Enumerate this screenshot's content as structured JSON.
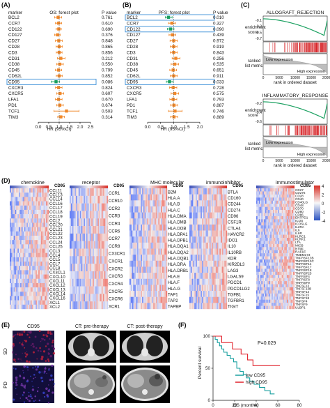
{
  "panels": {
    "A": {
      "letter": "(A)",
      "hdr_marker": "marker",
      "hdr_title": "OS: forest plot",
      "hdr_p": "P value",
      "xlabel": "HR (95%CI)",
      "ticks": [
        "0.0",
        "0.5",
        "1.0",
        "1.5",
        "2.0",
        "2.5"
      ],
      "tick_values": [
        0,
        0.5,
        1,
        1.5,
        2,
        2.5
      ],
      "xlim": [
        0,
        2.5
      ],
      "rows": [
        {
          "marker": "BCL2",
          "p": "0.761",
          "hr": 0.95,
          "lo": 0.78,
          "hi": 1.12
        },
        {
          "marker": "CCR7",
          "p": "0.610",
          "hr": 0.97,
          "lo": 0.82,
          "hi": 1.12
        },
        {
          "marker": "CD122",
          "p": "0.690",
          "hr": 0.98,
          "lo": 0.85,
          "hi": 1.1
        },
        {
          "marker": "CD127",
          "p": "0.376",
          "hr": 0.92,
          "lo": 0.78,
          "hi": 1.05
        },
        {
          "marker": "CD27",
          "p": "0.848",
          "hr": 0.98,
          "lo": 0.82,
          "hi": 1.15
        },
        {
          "marker": "CD28",
          "p": "0.865",
          "hr": 1.0,
          "lo": 0.85,
          "hi": 1.15
        },
        {
          "marker": "CD3",
          "p": "0.856",
          "hr": 1.0,
          "lo": 0.86,
          "hi": 1.14
        },
        {
          "marker": "CD31",
          "p": "0.212",
          "hr": 1.08,
          "lo": 0.92,
          "hi": 1.28
        },
        {
          "marker": "CD38",
          "p": "0.550",
          "hr": 1.03,
          "lo": 0.88,
          "hi": 1.2
        },
        {
          "marker": "CD45",
          "p": "0.799",
          "hr": 0.97,
          "lo": 0.82,
          "hi": 1.12
        },
        {
          "marker": "CD62L",
          "p": "0.852",
          "hr": 1.0,
          "lo": 0.86,
          "hi": 1.15
        },
        {
          "marker": "CD95",
          "p": "0.086",
          "hr": 0.85,
          "lo": 0.62,
          "hi": 1.02,
          "highlight": true
        },
        {
          "marker": "CXCR3",
          "p": "0.824",
          "hr": 0.97,
          "lo": 0.82,
          "hi": 1.14
        },
        {
          "marker": "CXCR5",
          "p": "0.607",
          "hr": 1.04,
          "lo": 0.88,
          "hi": 1.22
        },
        {
          "marker": "LFA1",
          "p": "0.670",
          "hr": 0.97,
          "lo": 0.82,
          "hi": 1.14
        },
        {
          "marker": "PD1",
          "p": "0.674",
          "hr": 1.03,
          "lo": 0.88,
          "hi": 1.2
        },
        {
          "marker": "TCF1",
          "p": "0.503",
          "hr": 1.35,
          "lo": 0.75,
          "hi": 1.95
        },
        {
          "marker": "TIM3",
          "p": "0.314",
          "hr": 1.08,
          "lo": 0.93,
          "hi": 1.25
        }
      ]
    },
    "B": {
      "letter": "(B)",
      "hdr_marker": "marker",
      "hdr_title": "PFS: forest plot",
      "hdr_p": "P value",
      "xlabel": "HR (95%CI)",
      "ticks": [
        "0.0",
        "0.5",
        "1.0",
        "1.5",
        "2.0"
      ],
      "tick_values": [
        0,
        0.5,
        1,
        1.5,
        2
      ],
      "xlim": [
        0,
        2.0
      ],
      "rows": [
        {
          "marker": "BCL2",
          "p": "0.010",
          "hr": 0.8,
          "lo": 0.68,
          "hi": 0.94,
          "highlight": true
        },
        {
          "marker": "CCR7",
          "p": "0.327",
          "hr": 0.93,
          "lo": 0.8,
          "hi": 1.07
        },
        {
          "marker": "CD122",
          "p": "0.090",
          "hr": 0.88,
          "lo": 0.76,
          "hi": 1.01,
          "highlight": true
        },
        {
          "marker": "CD127",
          "p": "0.439",
          "hr": 0.95,
          "lo": 0.82,
          "hi": 1.08
        },
        {
          "marker": "CD27",
          "p": "0.972",
          "hr": 1.0,
          "lo": 0.86,
          "hi": 1.14
        },
        {
          "marker": "CD28",
          "p": "0.919",
          "hr": 1.0,
          "lo": 0.87,
          "hi": 1.13
        },
        {
          "marker": "CD3",
          "p": "0.843",
          "hr": 1.0,
          "lo": 0.87,
          "hi": 1.14
        },
        {
          "marker": "CD31",
          "p": "0.256",
          "hr": 1.08,
          "lo": 0.94,
          "hi": 1.24
        },
        {
          "marker": "CD38",
          "p": "0.535",
          "hr": 1.04,
          "lo": 0.9,
          "hi": 1.19
        },
        {
          "marker": "CD45",
          "p": "0.651",
          "hr": 0.98,
          "lo": 0.85,
          "hi": 1.11
        },
        {
          "marker": "CD62L",
          "p": "0.911",
          "hr": 1.0,
          "lo": 0.87,
          "hi": 1.14
        },
        {
          "marker": "CD95",
          "p": "0.033",
          "hr": 0.84,
          "lo": 0.72,
          "hi": 0.98,
          "highlight": true
        },
        {
          "marker": "CXCR3",
          "p": "0.728",
          "hr": 0.98,
          "lo": 0.84,
          "hi": 1.12
        },
        {
          "marker": "CXCR5",
          "p": "0.575",
          "hr": 1.04,
          "lo": 0.9,
          "hi": 1.19
        },
        {
          "marker": "LFA1",
          "p": "0.793",
          "hr": 0.98,
          "lo": 0.85,
          "hi": 1.12
        },
        {
          "marker": "PD1",
          "p": "0.887",
          "hr": 1.01,
          "lo": 0.88,
          "hi": 1.15
        },
        {
          "marker": "TCF1",
          "p": "0.746",
          "hr": 1.05,
          "lo": 0.8,
          "hi": 1.32
        },
        {
          "marker": "TIM3",
          "p": "0.889",
          "hr": 1.01,
          "lo": 0.88,
          "hi": 1.15
        }
      ]
    },
    "C": {
      "letter": "(C)",
      "plots": [
        {
          "title": "ALLOGRAFT_REJECTION",
          "yl1": "enrichment",
          "yl2": "score",
          "yt": [
            "-0.1",
            "-0.3",
            "-0.5",
            "-0.7"
          ],
          "low": "Low expression",
          "high": "High expression",
          "ylr1": "ranked",
          "ylr2": "list metric",
          "xticks": [
            "0",
            "5000",
            "10000",
            "15000",
            "20000"
          ],
          "xlabel": "rank in ordered dataset"
        },
        {
          "title": "INFLAMMATORY_RESPONSE",
          "yl1": "enrichment",
          "yl2": "score",
          "yt": [
            "-0.2",
            "-0.4",
            "-0.6"
          ],
          "low": "Low expression",
          "high": "High expression",
          "ylr1": "ranked",
          "ylr2": "list metric",
          "xticks": [
            "0",
            "5000",
            "10000",
            "15000",
            "20000"
          ],
          "xlabel": "rank in ordered dataset"
        }
      ]
    },
    "D": {
      "letter": "(D)",
      "groups": [
        {
          "title": "chemokine",
          "genes": [
            "CCL11",
            "CCL13",
            "CCL14",
            "CCL16",
            "CCL17",
            "CCL18",
            "CCL19",
            "CCL2",
            "CCL20",
            "CCL21",
            "CCL22",
            "CCL23",
            "CCL24",
            "CCL25",
            "CCL3",
            "CCL4",
            "CCL5",
            "CCL7",
            "CCL8",
            "CX3CL1",
            "CXCL10",
            "CXCL11",
            "CXCL12",
            "CXCL13",
            "CXCL14",
            "CXCL16",
            "XCL1",
            "XCL2"
          ]
        },
        {
          "title": "receptor",
          "genes": [
            "CCR1",
            "CCR10",
            "CCR2",
            "CCR3",
            "CCR4",
            "CCR6",
            "CCR7",
            "CCR8",
            "CX3CR1",
            "CXCR1",
            "CXCR2",
            "CXCR3",
            "CXCR4",
            "CXCR5",
            "CXCR6",
            "XCR1"
          ]
        },
        {
          "title": "MHC molecular",
          "genes": [
            "B2M",
            "HLA.A",
            "HLA.B",
            "HLA.C",
            "HLA.DMA",
            "HLA.DMB",
            "HLA.DOB",
            "HLA.DPA1",
            "HLA.DPB1",
            "HLA.DQA1",
            "HLA.DQA2",
            "HLA.DQB1",
            "HLA.DRA",
            "HLA.DRB1",
            "HLA.E",
            "HLA.F",
            "HLA.G",
            "TAP1",
            "TAP2",
            "TAPBP"
          ]
        },
        {
          "title": "immunoinhibitor",
          "genes": [
            "BTLA",
            "CD160",
            "CD244",
            "CD274",
            "CD96",
            "CSF1R",
            "CTLA4",
            "HAVCR2",
            "IDO1",
            "IL10",
            "IL10RB",
            "KDR",
            "KIR2DL3",
            "LAG3",
            "LGALS9",
            "PDCD1",
            "PDCD1LG2",
            "TGFB1",
            "TGFBR1",
            "TIGIT"
          ]
        },
        {
          "title": "immunostimulator",
          "genes": [
            "CD27",
            "CD276",
            "CD28",
            "CD40",
            "CD40LG",
            "CD48",
            "CD70",
            "CD80",
            "CD86",
            "ENTPD1",
            "ICOS",
            "ICOSLG",
            "IL2RA",
            "IL6",
            "IL6R",
            "KLRC1",
            "KLRK1",
            "LTA",
            "MICB",
            "NT5E",
            "RAE1E",
            "TMEM173",
            "TNFRSF13B",
            "TNFRSF13C",
            "TNFRSF14",
            "TNFRSF17",
            "TNFRSF18",
            "TNFRSF25",
            "TNFRSF4",
            "TNFRSF8",
            "TNFRSF9",
            "TNFSF13",
            "TNFSF13B",
            "TNFSF14",
            "TNFSF15",
            "TNFSF18",
            "TNFSF4",
            "TNFSF9",
            "ULBP1"
          ]
        }
      ],
      "cd95_label": "CD95",
      "scale_ticks": [
        "4",
        "2",
        "0",
        "-2",
        "-4"
      ]
    },
    "E": {
      "letter": "(E)",
      "cols": [
        "CD95",
        "CT: pre-therapy",
        "CT: post-therapy"
      ],
      "rows": [
        "SD",
        "PD"
      ]
    },
    "F": {
      "letter": "(F)",
      "ylabel": "Percent survival",
      "xlabel": "OS (months)",
      "yticks": [
        "100",
        "50",
        "0"
      ],
      "xticks": [
        "0",
        "20",
        "40",
        "60",
        "80"
      ],
      "pvalue": "P=0.029",
      "legend": [
        {
          "label": "low CD95",
          "color": "#1aa0a0"
        },
        {
          "label": "high CD95",
          "color": "#e0202a"
        }
      ],
      "chart_data": {
        "type": "line",
        "xlabel": "OS (months)",
        "ylabel": "Percent survival",
        "xlim": [
          0,
          80
        ],
        "ylim": [
          0,
          100
        ],
        "series": [
          {
            "name": "low CD95",
            "color": "#1aa0a0",
            "steps": [
              [
                0,
                100
              ],
              [
                2,
                95
              ],
              [
                4,
                90
              ],
              [
                6,
                85
              ],
              [
                8,
                80
              ],
              [
                10,
                75
              ],
              [
                13,
                70
              ],
              [
                16,
                65
              ],
              [
                19,
                60
              ],
              [
                22,
                50
              ],
              [
                25,
                45
              ],
              [
                28,
                40
              ],
              [
                31,
                35
              ],
              [
                34,
                30
              ],
              [
                38,
                25
              ],
              [
                43,
                20
              ],
              [
                48,
                15
              ],
              [
                53,
                10
              ],
              [
                57,
                10
              ]
            ]
          },
          {
            "name": "high CD95",
            "color": "#e0202a",
            "steps": [
              [
                0,
                100
              ],
              [
                8,
                90
              ],
              [
                18,
                80
              ],
              [
                26,
                72
              ],
              [
                32,
                63
              ],
              [
                37,
                54
              ],
              [
                62,
                54
              ]
            ]
          }
        ]
      }
    }
  },
  "colors": {
    "orange": "#f0882a",
    "green": "#1aa060",
    "highlight_box": "#3a8fd8",
    "heat_red": "#d73027",
    "heat_blue": "#2a52c0"
  }
}
